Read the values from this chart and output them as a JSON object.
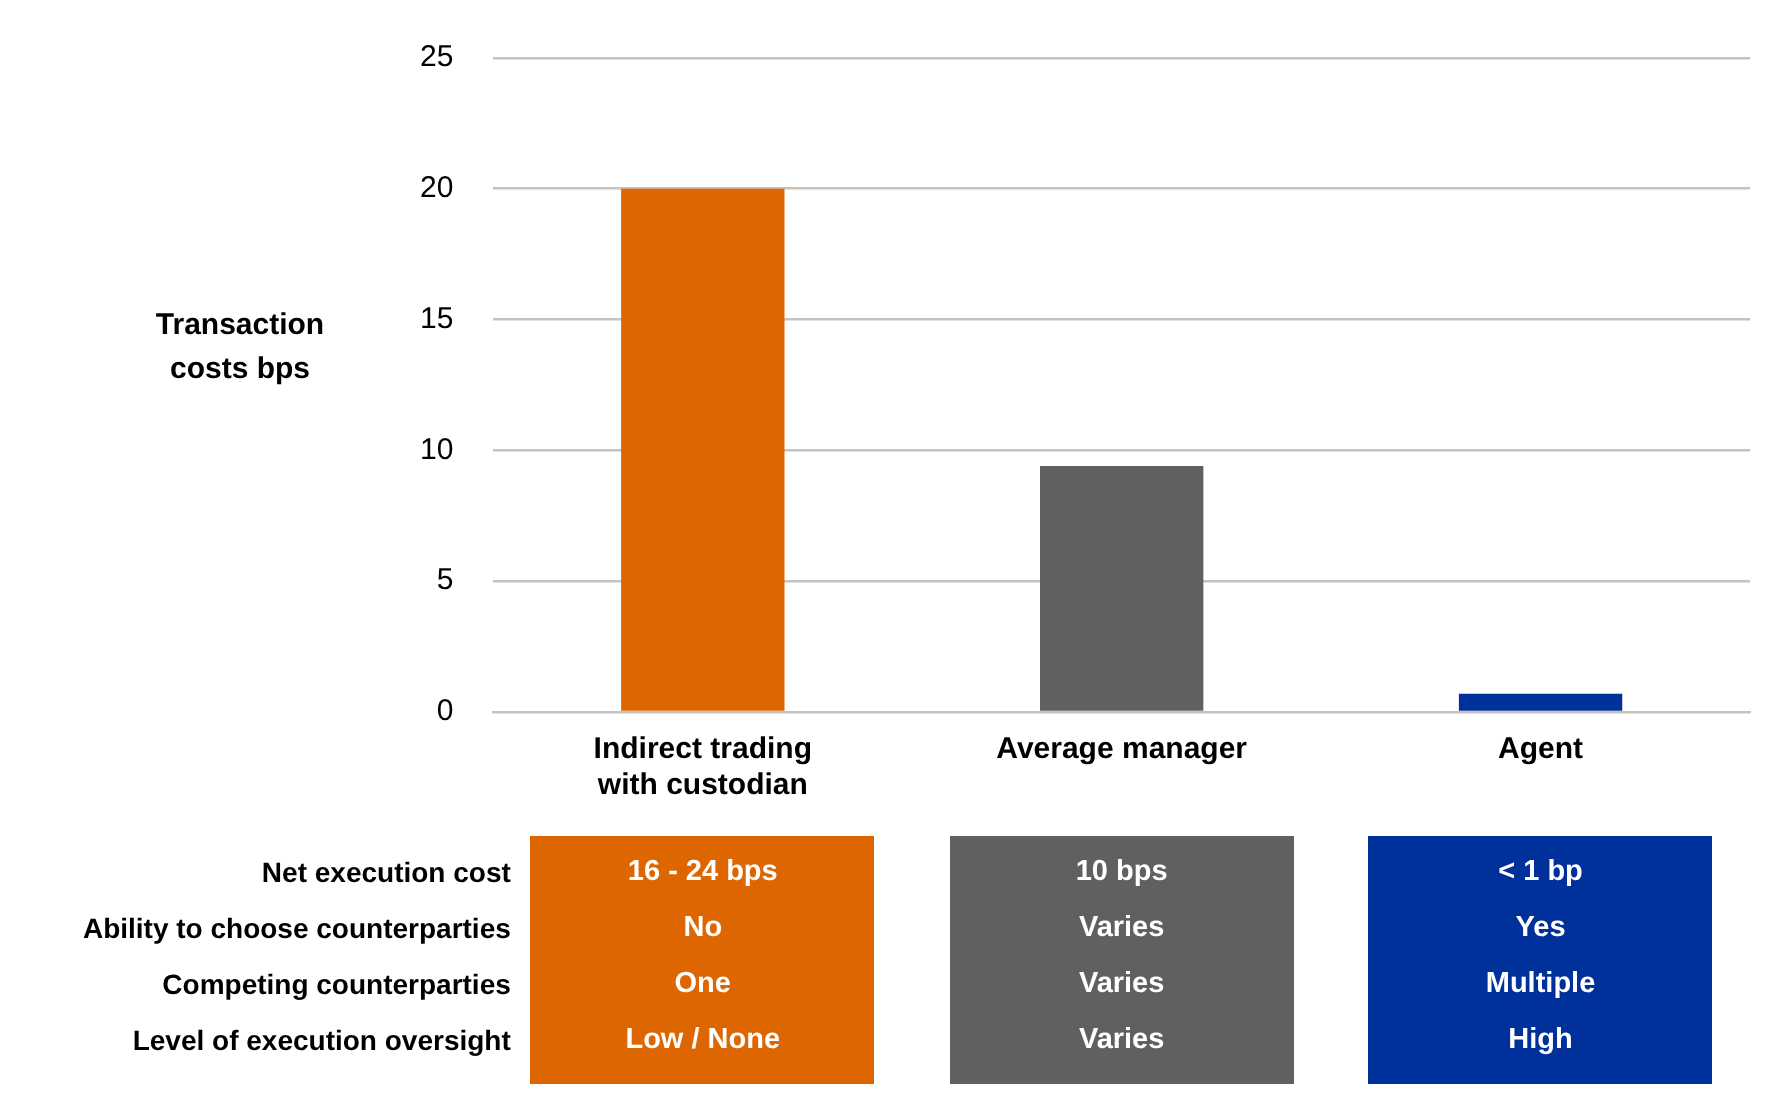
{
  "chart_data": {
    "type": "bar",
    "ylabel": "Transaction costs bps",
    "categories": [
      "Indirect trading with custodian",
      "Average manager",
      "Agent"
    ],
    "values": [
      20,
      9.4,
      0.7
    ],
    "colors": [
      "#dd6600",
      "#606060",
      "#00309a"
    ],
    "ylim": [
      0,
      25
    ],
    "yticks": [
      0,
      5,
      10,
      15,
      20,
      25
    ],
    "grid": "y",
    "legend": false,
    "annotations": [
      "Net execution cost",
      "Ability to choose counterparties",
      "Competing counterparties",
      "Level of execution oversight",
      "16 - 24 bps",
      "No",
      "One",
      "Low / None",
      "10 bps",
      "Varies",
      "Varies",
      "Varies",
      "< 1 bp",
      "Yes",
      "Multiple",
      "High"
    ]
  }
}
